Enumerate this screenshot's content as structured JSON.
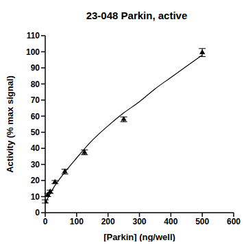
{
  "chart_data": {
    "type": "scatter",
    "title": "23-048 Parkin, active",
    "x_label": "[Parkin] (ng/well)",
    "y_label": "Activity (% max signal)",
    "x": [
      0,
      7.8,
      15.6,
      31.25,
      62.5,
      125,
      250,
      500
    ],
    "values": [
      7,
      11,
      13,
      19,
      25.5,
      37.5,
      58,
      99.5
    ],
    "error": [
      1,
      1,
      1,
      1,
      1.5,
      1.5,
      1.5,
      2.5
    ],
    "color": "#000000",
    "marker": "triangle",
    "curve": {
      "x": [
        0,
        25,
        50,
        100,
        150,
        200,
        250,
        300,
        350,
        400,
        450,
        500
      ],
      "values": [
        6,
        15,
        22,
        34,
        45,
        54,
        62,
        69,
        77,
        84,
        91,
        98
      ],
      "line_style": "solid"
    },
    "xlim": [
      0,
      600
    ],
    "xticks": [
      0,
      100,
      200,
      300,
      400,
      500,
      600
    ],
    "ylim": [
      0,
      110
    ],
    "yticks": [
      0,
      10,
      20,
      30,
      40,
      50,
      60,
      70,
      80,
      90,
      100,
      110
    ],
    "grid": false
  }
}
